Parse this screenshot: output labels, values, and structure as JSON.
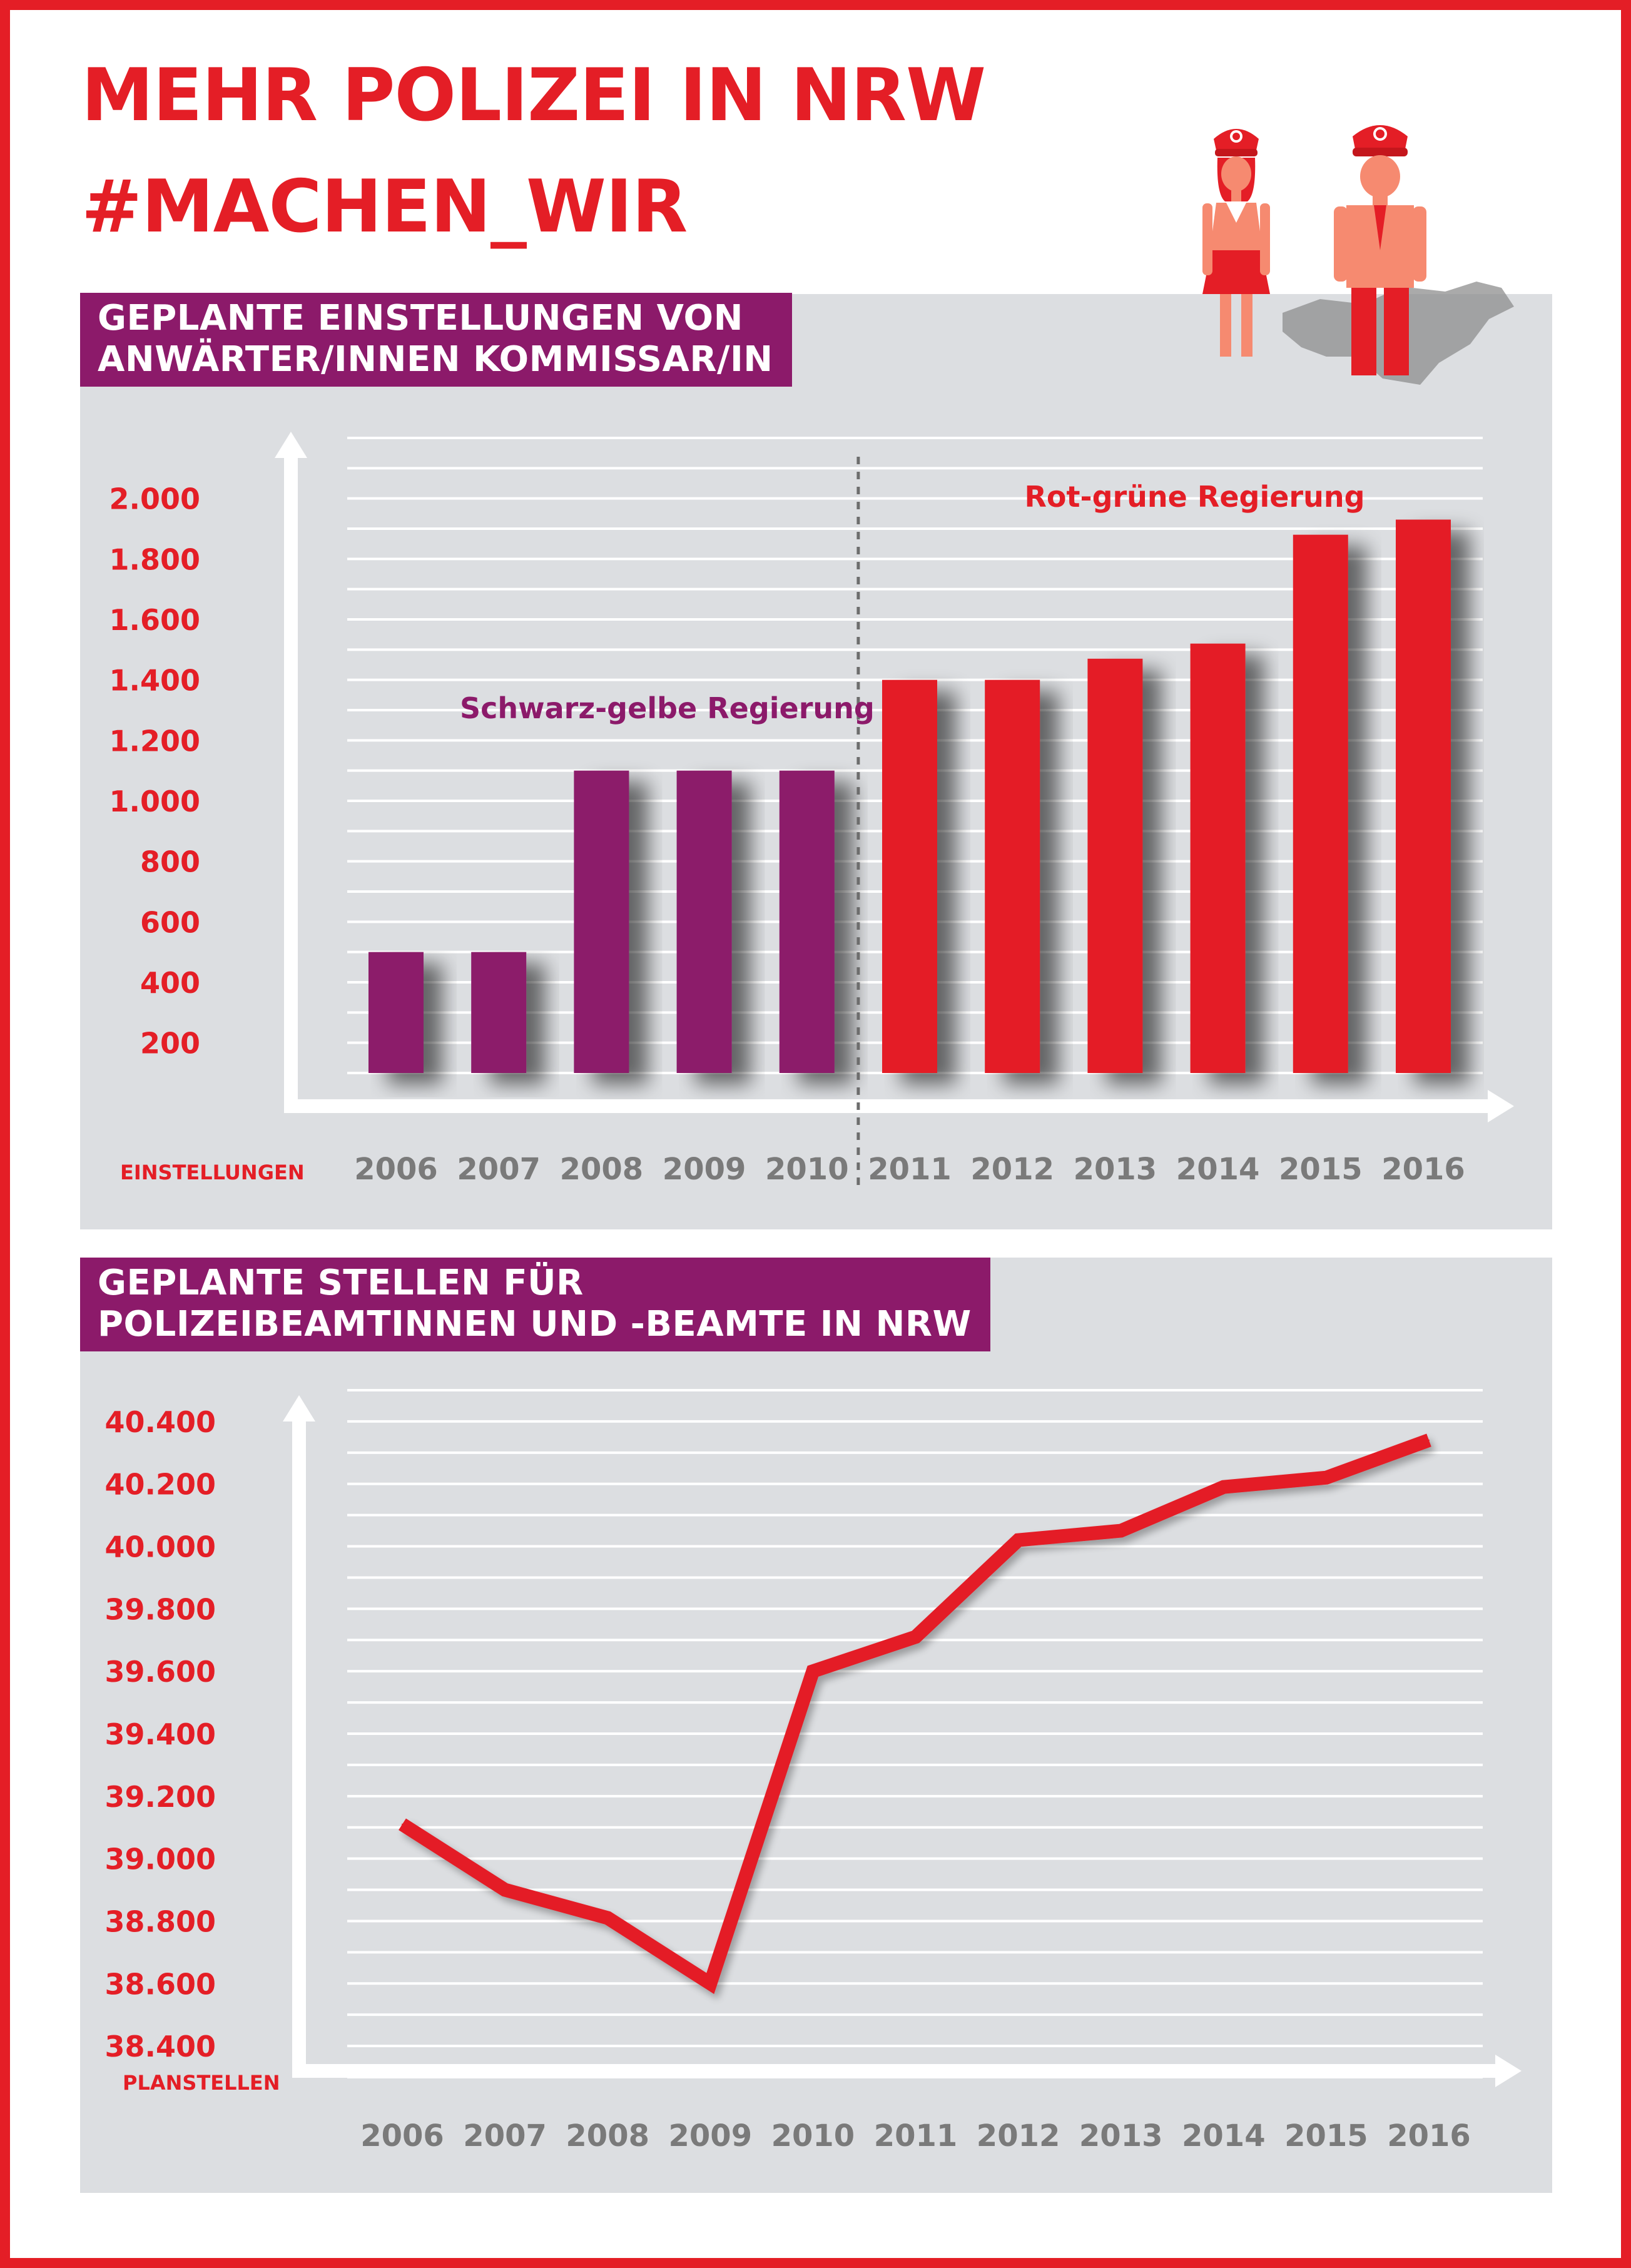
{
  "headline": {
    "line1": "MEHR POLIZEI IN NRW",
    "line2": "#MACHEN_WIR"
  },
  "colors": {
    "red": "#e41e26",
    "purple": "#8c1a6a",
    "panel": "#dcdee1",
    "tick_gray": "#7a7a7a"
  },
  "icons": [
    "policewoman-icon",
    "policeman-icon",
    "nrw-map-silhouette"
  ],
  "sections": {
    "hiring": {
      "title": "GEPLANTE EINSTELLUNGEN VON\nANWÄRTER/INNEN KOMMISSAR/IN"
    },
    "positions": {
      "title": "GEPLANTE STELLEN FÜR\nPOLIZEIBEAMTINNEN UND -BEAMTE IN NRW"
    }
  },
  "chart_data": [
    {
      "type": "bar",
      "title": "GEPLANTE EINSTELLUNGEN VON ANWÄRTER/INNEN KOMMISSAR/IN",
      "ylabel": "EINSTELLUNGEN",
      "categories": [
        "2006",
        "2007",
        "2008",
        "2009",
        "2010",
        "2011",
        "2012",
        "2013",
        "2014",
        "2015",
        "2016"
      ],
      "values": [
        500,
        500,
        1100,
        1100,
        1100,
        1400,
        1400,
        1470,
        1520,
        1880,
        1930
      ],
      "bar_colors": [
        "#8c1a6a",
        "#8c1a6a",
        "#8c1a6a",
        "#8c1a6a",
        "#8c1a6a",
        "#e41e26",
        "#e41e26",
        "#e41e26",
        "#e41e26",
        "#e41e26",
        "#e41e26"
      ],
      "ylim": [
        100,
        2200
      ],
      "yticks": [
        200,
        400,
        600,
        800,
        1000,
        1200,
        1400,
        1600,
        1800,
        2000
      ],
      "ytick_labels": [
        "200",
        "400",
        "600",
        "800",
        "1.000",
        "1.200",
        "1.400",
        "1.600",
        "1.800",
        "2.000"
      ],
      "grid": true,
      "divider_after": "2010",
      "annotations": [
        {
          "text": "Schwarz-gelbe Regierung",
          "color": "#8c1a6a"
        },
        {
          "text": "Rot-grüne Regierung",
          "color": "#e41e26"
        }
      ]
    },
    {
      "type": "line",
      "title": "GEPLANTE STELLEN FÜR POLIZEIBEAMTINNEN UND -BEAMTE IN NRW",
      "ylabel": "PLANSTELLEN",
      "x": [
        "2006",
        "2007",
        "2008",
        "2009",
        "2010",
        "2011",
        "2012",
        "2013",
        "2014",
        "2015",
        "2016"
      ],
      "series": [
        {
          "color": "#e41e26",
          "values": [
            39110,
            38900,
            38810,
            38600,
            39600,
            39710,
            40020,
            40050,
            40190,
            40220,
            40340
          ]
        }
      ],
      "ylim": [
        38300,
        40500
      ],
      "yticks": [
        38400,
        38600,
        38800,
        39000,
        39200,
        39400,
        39600,
        39800,
        40000,
        40200,
        40400
      ],
      "ytick_labels": [
        "38.400",
        "38.600",
        "38.800",
        "39.000",
        "39.200",
        "39.400",
        "39.600",
        "39.800",
        "40.000",
        "40.200",
        "40.400"
      ],
      "grid": true
    }
  ]
}
